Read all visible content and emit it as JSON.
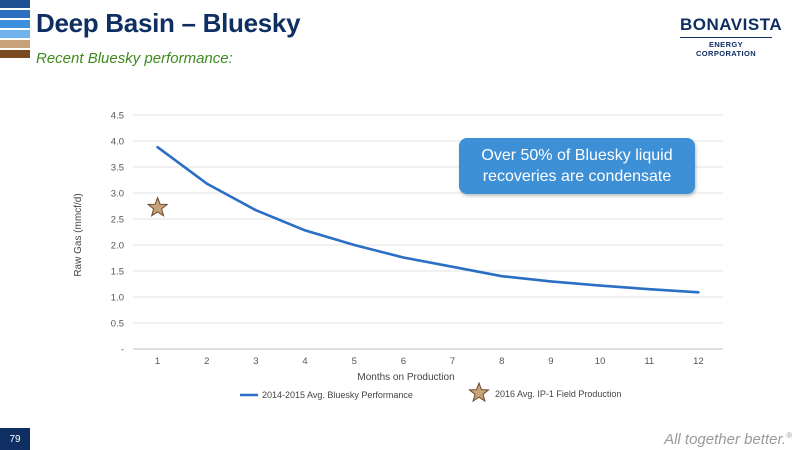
{
  "header": {
    "title": "Deep Basin – Bluesky",
    "subtitle": "Recent Bluesky performance:",
    "stripe_colors": [
      "#1e4f91",
      "#2f6fc0",
      "#3e8fde",
      "#6fb3ea",
      "#c8a27a",
      "#7a4a21"
    ]
  },
  "logo": {
    "main": "BONAVISTA",
    "sub": "ENERGY CORPORATION"
  },
  "callout": {
    "text": "Over 50% of Bluesky liquid recoveries are condensate"
  },
  "footer": {
    "page_number": "79",
    "tagline": "All together better.",
    "tagline_mark": "®"
  },
  "chart_data": {
    "type": "line",
    "xlabel": "Months on Production",
    "ylabel": "Raw Gas (mmcf/d)",
    "categories": [
      "1",
      "2",
      "3",
      "4",
      "5",
      "6",
      "7",
      "8",
      "9",
      "10",
      "11",
      "12"
    ],
    "y_ticks": [
      {
        "value": 0,
        "label": "-"
      },
      {
        "value": 0.5,
        "label": "0.5"
      },
      {
        "value": 1.0,
        "label": "1.0"
      },
      {
        "value": 1.5,
        "label": "1.5"
      },
      {
        "value": 2.0,
        "label": "2.0"
      },
      {
        "value": 2.5,
        "label": "2.5"
      },
      {
        "value": 3.0,
        "label": "3.0"
      },
      {
        "value": 3.5,
        "label": "3.5"
      },
      {
        "value": 4.0,
        "label": "4.0"
      },
      {
        "value": 4.5,
        "label": "4.5"
      }
    ],
    "ylim": [
      0,
      4.5
    ],
    "grid": true,
    "legend_position": "bottom",
    "series": [
      {
        "name": "2014-2015 Avg. Bluesky Performance",
        "kind": "line",
        "color": "#2a6fc4",
        "values": [
          3.88,
          3.18,
          2.67,
          2.28,
          2.0,
          1.76,
          1.58,
          1.4,
          1.3,
          1.22,
          1.15,
          1.09
        ]
      },
      {
        "name": "2016 Avg. IP-1 Field Production",
        "kind": "marker",
        "marker": "star",
        "color": "#c8a27a",
        "points": [
          {
            "x": "1",
            "y": 2.72
          }
        ]
      }
    ]
  }
}
